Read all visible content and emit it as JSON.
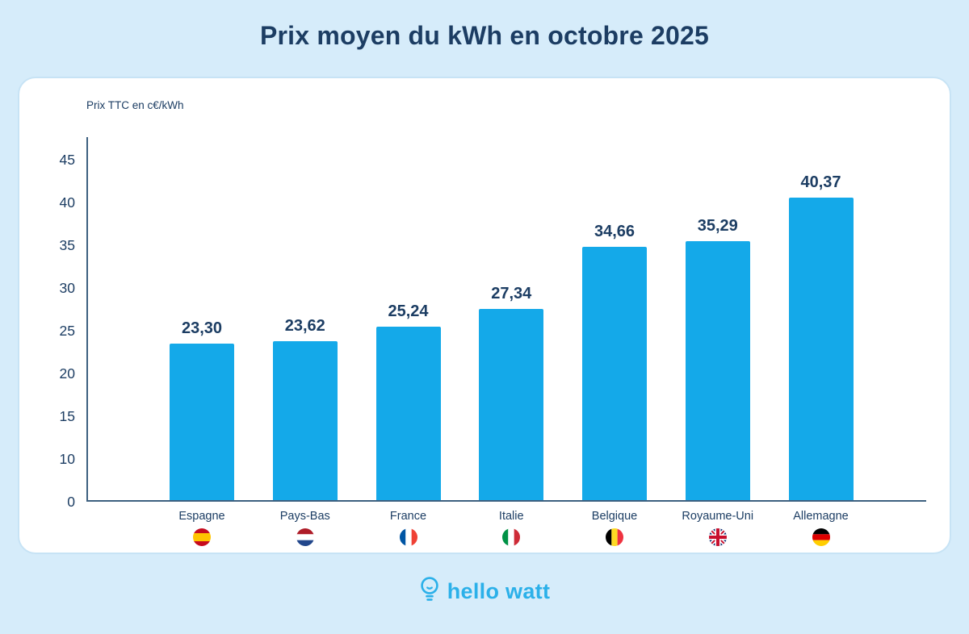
{
  "page": {
    "title": "Prix moyen du kWh en octobre 2025",
    "background_color": "#D6ECFA",
    "navy_color": "#1C3D63"
  },
  "chart_data": {
    "type": "bar",
    "title": "Prix moyen du kWh en octobre 2025",
    "ylabel": "Prix TTC en c€/kWh",
    "categories": [
      "Espagne",
      "Pays-Bas",
      "France",
      "Italie",
      "Belgique",
      "Royaume-Uni",
      "Allemagne"
    ],
    "values": [
      23.3,
      23.62,
      25.24,
      27.34,
      34.66,
      35.29,
      40.37
    ],
    "value_labels": [
      "23,30",
      "23,62",
      "25,24",
      "27,34",
      "34,66",
      "35,29",
      "40,37"
    ],
    "flags": [
      "es",
      "nl",
      "fr",
      "it",
      "be",
      "gb",
      "de"
    ],
    "y_ticks": [
      0,
      10,
      15,
      20,
      25,
      30,
      35,
      40,
      45
    ],
    "bar_color": "#14A9E9",
    "axis_color": "#3D6080",
    "grid": false,
    "legend": false
  },
  "footer": {
    "brand": "hello watt",
    "brand_color": "#2BB0E9"
  }
}
